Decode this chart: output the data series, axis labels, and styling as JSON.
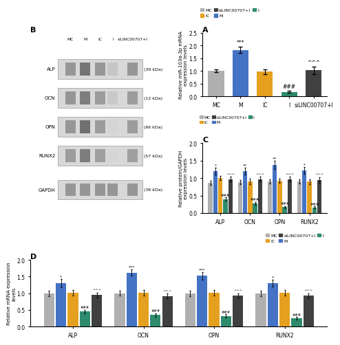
{
  "colors": {
    "MC": "#b0b0b0",
    "M": "#4472c4",
    "IC": "#e5a020",
    "I": "#2e8b6e",
    "siLINC": "#404040"
  },
  "panel_A": {
    "title": "A",
    "ylabel": "Relative miR-103a-3p mRNA\nexpression levels",
    "xlabels": [
      "MC",
      "M",
      "IC",
      "I",
      "siLINC00707+I"
    ],
    "values": [
      1.0,
      1.82,
      0.97,
      0.17,
      1.02
    ],
    "errors": [
      0.06,
      0.12,
      0.1,
      0.04,
      0.14
    ],
    "ylim": [
      0,
      2.5
    ],
    "yticks": [
      0.0,
      0.5,
      1.0,
      1.5,
      2.0,
      2.5
    ],
    "ann_M": "***",
    "ann_I": "###",
    "ann_si": "^^^"
  },
  "panel_C": {
    "title": "C",
    "ylabel": "Relative protein/GAPDH\nexpression levels",
    "groups": [
      "ALP",
      "OCN",
      "OPN",
      "RUNX2"
    ],
    "series": {
      "MC": [
        0.87,
        0.88,
        0.9,
        0.9
      ],
      "M": [
        1.2,
        1.2,
        1.38,
        1.22
      ],
      "IC": [
        1.0,
        0.9,
        0.93,
        0.9
      ],
      "I": [
        0.4,
        0.28,
        0.17,
        0.16
      ],
      "siLINC": [
        0.97,
        0.97,
        0.97,
        0.95
      ]
    },
    "errors": {
      "MC": [
        0.06,
        0.06,
        0.06,
        0.06
      ],
      "M": [
        0.1,
        0.09,
        0.12,
        0.1
      ],
      "IC": [
        0.06,
        0.08,
        0.06,
        0.07
      ],
      "I": [
        0.05,
        0.04,
        0.03,
        0.03
      ],
      "siLINC": [
        0.07,
        0.07,
        0.07,
        0.08
      ]
    },
    "ylim": [
      0.0,
      2.0
    ],
    "yticks": [
      0.0,
      0.5,
      1.0,
      1.5,
      2.0
    ],
    "star_M": [
      "*",
      "**",
      "**",
      "*"
    ],
    "star_I": [
      "###",
      "###",
      "###",
      "###"
    ],
    "star_si": [
      "^^^",
      "^^^",
      "^^^",
      "^^^"
    ]
  },
  "panel_D": {
    "title": "D",
    "ylabel": "Relative mRNA expression\nlevels",
    "groups": [
      "ALP",
      "OCN",
      "OPN",
      "RUNX2"
    ],
    "series": {
      "MC": [
        1.0,
        1.0,
        1.0,
        1.0
      ],
      "M": [
        1.3,
        1.62,
        1.52,
        1.3
      ],
      "IC": [
        1.02,
        1.02,
        1.02,
        1.02
      ],
      "I": [
        0.45,
        0.35,
        0.32,
        0.25
      ],
      "siLINC": [
        0.95,
        0.92,
        0.93,
        0.93
      ]
    },
    "errors": {
      "MC": [
        0.08,
        0.07,
        0.08,
        0.08
      ],
      "M": [
        0.12,
        0.1,
        0.11,
        0.1
      ],
      "IC": [
        0.08,
        0.08,
        0.08,
        0.08
      ],
      "I": [
        0.06,
        0.05,
        0.05,
        0.04
      ],
      "siLINC": [
        0.07,
        0.07,
        0.07,
        0.07
      ]
    },
    "ylim": [
      0.0,
      2.0
    ],
    "yticks": [
      0.0,
      0.5,
      1.0,
      1.5,
      2.0
    ],
    "star_M": [
      "*",
      "***",
      "***",
      "*"
    ],
    "star_I": [
      "###",
      "###",
      "###",
      "###"
    ],
    "star_si": [
      "^^^",
      "^^^",
      "^^^",
      "^^^"
    ]
  },
  "western_blot": {
    "labels": [
      "MC",
      "M",
      "IC",
      "I",
      "siLINC00707+I"
    ],
    "bands": [
      "ALP",
      "OCN",
      "OPN",
      "RUNX2",
      "GAPDH"
    ],
    "kda": [
      "(39 kDa)",
      "(12 kDa)",
      "(66 kDa)",
      "(57 kDa)",
      "(36 kDa)"
    ],
    "intensities": {
      "ALP": [
        0.55,
        0.72,
        0.55,
        0.3,
        0.55
      ],
      "OCN": [
        0.55,
        0.68,
        0.52,
        0.28,
        0.52
      ],
      "OPN": [
        0.55,
        0.75,
        0.52,
        0.22,
        0.52
      ],
      "RUNX2": [
        0.52,
        0.68,
        0.5,
        0.22,
        0.5
      ],
      "GAPDH": [
        0.55,
        0.55,
        0.55,
        0.55,
        0.55
      ]
    }
  }
}
